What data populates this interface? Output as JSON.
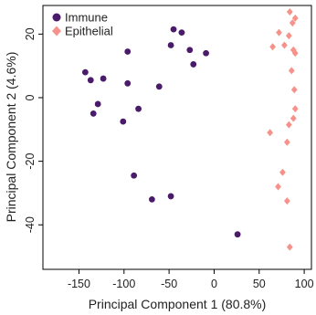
{
  "chart_data": {
    "type": "scatter",
    "xlabel": "Principal Component 1 (80.8%)",
    "ylabel": "Principal Component 2 (4.6%)",
    "xlim": [
      -190,
      108
    ],
    "ylim": [
      -54,
      29
    ],
    "xticks": [
      -150,
      -100,
      -50,
      0,
      50,
      100
    ],
    "yticks": [
      -40,
      -20,
      0,
      20
    ],
    "grid": false,
    "legend_position": "top-left",
    "series": [
      {
        "name": "Immune",
        "color": "#4a1a6b",
        "marker": "circle",
        "points": [
          {
            "x": -45,
            "y": 21.5
          },
          {
            "x": -36,
            "y": 20.5
          },
          {
            "x": -96,
            "y": 14.5
          },
          {
            "x": -48,
            "y": 16.5
          },
          {
            "x": -27,
            "y": 15
          },
          {
            "x": -9,
            "y": 14
          },
          {
            "x": -23,
            "y": 10.5
          },
          {
            "x": -143,
            "y": 8
          },
          {
            "x": -137,
            "y": 5.5
          },
          {
            "x": -123,
            "y": 6
          },
          {
            "x": -96,
            "y": 4.5
          },
          {
            "x": -61,
            "y": 3.5
          },
          {
            "x": -129,
            "y": -2
          },
          {
            "x": -84,
            "y": -3.5
          },
          {
            "x": -134,
            "y": -5
          },
          {
            "x": -101,
            "y": -7.5
          },
          {
            "x": -89,
            "y": -24.5
          },
          {
            "x": -69,
            "y": -32
          },
          {
            "x": -48,
            "y": -31
          },
          {
            "x": 26,
            "y": -43
          }
        ]
      },
      {
        "name": "Epithelial",
        "color": "#f7928a",
        "marker": "diamond",
        "points": [
          {
            "x": 84,
            "y": 27
          },
          {
            "x": 90,
            "y": 25
          },
          {
            "x": 87,
            "y": 23.5
          },
          {
            "x": 72,
            "y": 20.5
          },
          {
            "x": 83,
            "y": 19.5
          },
          {
            "x": 65,
            "y": 16
          },
          {
            "x": 78,
            "y": 16.5
          },
          {
            "x": 88,
            "y": 15
          },
          {
            "x": 90,
            "y": 14
          },
          {
            "x": 86,
            "y": 8.5
          },
          {
            "x": 89,
            "y": 2.5
          },
          {
            "x": 90,
            "y": -3.5
          },
          {
            "x": 88,
            "y": -6.5
          },
          {
            "x": 83,
            "y": -8.5
          },
          {
            "x": 62,
            "y": -11
          },
          {
            "x": 81,
            "y": -14
          },
          {
            "x": 76,
            "y": -23.5
          },
          {
            "x": 71,
            "y": -28
          },
          {
            "x": 81,
            "y": -32.5
          },
          {
            "x": 84,
            "y": -47
          }
        ]
      }
    ]
  }
}
